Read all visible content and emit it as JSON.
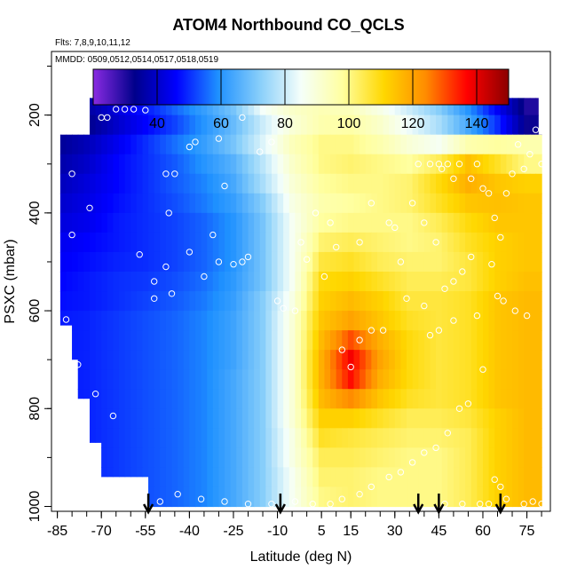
{
  "chart_data": {
    "type": "heatmap",
    "title": "ATOM4 Northbound CO_QCLS",
    "flights_label": "Flts: 7,8,9,10,11,12",
    "dates_label": "MMDD: 0509,0512,0514,0517,0518,0519",
    "xlabel": "Latitude (deg N)",
    "ylabel": "PSXC (mbar)",
    "xlim": [
      -87,
      83
    ],
    "ylim": [
      1010,
      70
    ],
    "x_ticks": [
      -85,
      -70,
      -55,
      -40,
      -25,
      -10,
      5,
      15,
      30,
      45,
      60,
      75
    ],
    "x_tick_labels": [
      "-85",
      "-70",
      "-55",
      "-40",
      "-25",
      "-10",
      "5",
      "15",
      "30",
      "45",
      "60",
      "75"
    ],
    "y_ticks": [
      200,
      400,
      600,
      800,
      1000
    ],
    "y_tick_labels": [
      "200",
      "400",
      "600",
      "800",
      "1000"
    ],
    "colorbar": {
      "range": [
        20,
        150
      ],
      "ticks": [
        40,
        60,
        80,
        100,
        120,
        140
      ],
      "tick_labels": [
        "40",
        "60",
        "80",
        "100",
        "120",
        "140"
      ],
      "colors": [
        "#8a2be2",
        "#00008b",
        "#0000ff",
        "#1e90ff",
        "#87cefa",
        "#f5fffa",
        "#ffffa0",
        "#ffd700",
        "#ff8c00",
        "#ff0000",
        "#8b0000"
      ]
    },
    "profile_arrows_lat": [
      -54,
      -9,
      38,
      45,
      66
    ],
    "curtain_top_pressure": 165,
    "curtain_bottom_pressure": 995,
    "pressure_levels": [
      180,
      220,
      260,
      300,
      340,
      380,
      420,
      460,
      500,
      540,
      580,
      620,
      660,
      700,
      740,
      780,
      820,
      860,
      900,
      940,
      980
    ],
    "latitude_bins": [
      -85,
      -75,
      -65,
      -55,
      -45,
      -35,
      -25,
      -15,
      -5,
      5,
      15,
      25,
      35,
      45,
      55,
      65,
      75
    ],
    "co_ppb": [
      [
        30,
        35,
        42,
        48,
        55,
        62,
        70,
        85,
        92,
        95,
        94,
        88,
        80,
        72,
        60,
        45,
        30
      ],
      [
        28,
        33,
        40,
        46,
        52,
        60,
        68,
        80,
        90,
        96,
        97,
        92,
        84,
        76,
        64,
        50,
        32
      ],
      [
        34,
        38,
        44,
        50,
        56,
        62,
        70,
        82,
        94,
        100,
        100,
        96,
        90,
        86,
        96,
        98,
        96
      ],
      [
        36,
        40,
        46,
        50,
        54,
        60,
        66,
        78,
        92,
        100,
        102,
        100,
        98,
        104,
        115,
        108,
        100
      ],
      [
        38,
        42,
        46,
        50,
        54,
        58,
        64,
        76,
        90,
        98,
        100,
        100,
        102,
        110,
        118,
        114,
        112
      ],
      [
        40,
        43,
        47,
        50,
        53,
        57,
        62,
        72,
        88,
        96,
        98,
        100,
        102,
        108,
        114,
        115,
        114
      ],
      [
        42,
        44,
        48,
        50,
        52,
        55,
        60,
        70,
        86,
        98,
        100,
        100,
        100,
        104,
        110,
        114,
        114
      ],
      [
        44,
        46,
        48,
        50,
        52,
        55,
        60,
        70,
        86,
        102,
        104,
        102,
        100,
        102,
        108,
        112,
        114
      ],
      [
        45,
        47,
        49,
        50,
        52,
        55,
        60,
        70,
        86,
        106,
        108,
        104,
        102,
        102,
        106,
        112,
        114
      ],
      [
        46,
        48,
        50,
        51,
        53,
        56,
        61,
        70,
        86,
        110,
        112,
        108,
        104,
        104,
        106,
        112,
        115
      ],
      [
        47,
        48,
        50,
        52,
        54,
        57,
        62,
        72,
        88,
        112,
        116,
        112,
        106,
        106,
        108,
        114,
        116
      ],
      [
        48,
        49,
        51,
        53,
        55,
        58,
        63,
        72,
        90,
        114,
        120,
        114,
        108,
        106,
        108,
        114,
        116
      ],
      [
        48,
        49,
        51,
        53,
        55,
        58,
        63,
        72,
        90,
        116,
        130,
        118,
        110,
        106,
        108,
        114,
        116
      ],
      [
        48,
        49,
        51,
        53,
        55,
        58,
        63,
        72,
        90,
        118,
        138,
        120,
        110,
        106,
        108,
        114,
        116
      ],
      [
        48,
        49,
        51,
        53,
        55,
        58,
        64,
        72,
        90,
        118,
        136,
        118,
        110,
        106,
        108,
        114,
        116
      ],
      [
        48,
        49,
        51,
        53,
        55,
        58,
        64,
        72,
        90,
        116,
        124,
        114,
        108,
        106,
        108,
        114,
        116
      ],
      [
        48,
        49,
        51,
        53,
        55,
        58,
        64,
        72,
        90,
        112,
        112,
        108,
        104,
        104,
        106,
        112,
        116
      ],
      [
        48,
        49,
        51,
        53,
        55,
        58,
        64,
        72,
        88,
        108,
        106,
        104,
        102,
        102,
        104,
        112,
        116
      ],
      [
        48,
        49,
        51,
        53,
        55,
        58,
        64,
        72,
        88,
        104,
        104,
        102,
        100,
        100,
        104,
        112,
        116
      ],
      [
        48,
        49,
        51,
        53,
        55,
        58,
        64,
        72,
        86,
        102,
        102,
        100,
        100,
        100,
        104,
        112,
        116
      ],
      [
        48,
        49,
        51,
        53,
        55,
        58,
        64,
        72,
        86,
        100,
        102,
        100,
        100,
        100,
        104,
        112,
        116
      ]
    ],
    "observation_points": [
      [
        -84,
        215
      ],
      [
        -82,
        215
      ],
      [
        -70,
        205
      ],
      [
        -68,
        205
      ],
      [
        -65,
        188
      ],
      [
        -62,
        188
      ],
      [
        -59,
        188
      ],
      [
        -55,
        190
      ],
      [
        -80,
        320
      ],
      [
        -74,
        390
      ],
      [
        -80,
        445
      ],
      [
        -57,
        485
      ],
      [
        -52,
        540
      ],
      [
        -48,
        510
      ],
      [
        -46,
        565
      ],
      [
        -52,
        575
      ],
      [
        -45,
        320
      ],
      [
        -48,
        320
      ],
      [
        -47,
        400
      ],
      [
        -40,
        480
      ],
      [
        -35,
        530
      ],
      [
        -30,
        500
      ],
      [
        -32,
        445
      ],
      [
        -28,
        345
      ],
      [
        -25,
        505
      ],
      [
        -22,
        500
      ],
      [
        -20,
        490
      ],
      [
        -16,
        275
      ],
      [
        -12,
        255
      ],
      [
        -10,
        580
      ],
      [
        -8,
        595
      ],
      [
        -4,
        600
      ],
      [
        -40,
        265
      ],
      [
        -38,
        255
      ],
      [
        -30,
        248
      ],
      [
        -22,
        205
      ],
      [
        -2,
        460
      ],
      [
        0,
        495
      ],
      [
        3,
        400
      ],
      [
        6,
        530
      ],
      [
        8,
        420
      ],
      [
        10,
        470
      ],
      [
        15,
        715
      ],
      [
        18,
        460
      ],
      [
        22,
        380
      ],
      [
        28,
        420
      ],
      [
        30,
        430
      ],
      [
        32,
        500
      ],
      [
        36,
        380
      ],
      [
        38,
        300
      ],
      [
        40,
        420
      ],
      [
        42,
        300
      ],
      [
        44,
        460
      ],
      [
        45,
        300
      ],
      [
        46,
        310
      ],
      [
        48,
        300
      ],
      [
        50,
        330
      ],
      [
        52,
        300
      ],
      [
        56,
        330
      ],
      [
        58,
        300
      ],
      [
        60,
        350
      ],
      [
        62,
        360
      ],
      [
        64,
        410
      ],
      [
        66,
        450
      ],
      [
        68,
        360
      ],
      [
        70,
        320
      ],
      [
        72,
        260
      ],
      [
        74,
        310
      ],
      [
        76,
        280
      ],
      [
        78,
        230
      ],
      [
        80,
        300
      ],
      [
        82,
        500
      ],
      [
        63,
        505
      ],
      [
        56,
        490
      ],
      [
        53,
        520
      ],
      [
        50,
        540
      ],
      [
        47,
        555
      ],
      [
        40,
        590
      ],
      [
        34,
        575
      ],
      [
        26,
        640
      ],
      [
        22,
        640
      ],
      [
        18,
        660
      ],
      [
        12,
        680
      ],
      [
        60,
        720
      ],
      [
        55,
        790
      ],
      [
        52,
        800
      ],
      [
        48,
        850
      ],
      [
        44,
        880
      ],
      [
        40,
        890
      ],
      [
        36,
        910
      ],
      [
        32,
        930
      ],
      [
        28,
        940
      ],
      [
        22,
        960
      ],
      [
        18,
        975
      ],
      [
        12,
        985
      ],
      [
        8,
        995
      ],
      [
        2,
        995
      ],
      [
        -4,
        990
      ],
      [
        -12,
        995
      ],
      [
        -20,
        995
      ],
      [
        -28,
        990
      ],
      [
        -36,
        985
      ],
      [
        -44,
        975
      ],
      [
        -50,
        990
      ],
      [
        -58,
        950
      ],
      [
        -66,
        815
      ],
      [
        -72,
        770
      ],
      [
        -78,
        710
      ],
      [
        -82,
        618
      ],
      [
        64,
        945
      ],
      [
        66,
        960
      ],
      [
        68,
        985
      ],
      [
        62,
        995
      ],
      [
        74,
        995
      ],
      [
        77,
        990
      ],
      [
        80,
        995
      ],
      [
        59,
        995
      ],
      [
        53,
        995
      ],
      [
        47,
        995
      ],
      [
        65,
        570
      ],
      [
        67,
        580
      ],
      [
        71,
        600
      ],
      [
        75,
        610
      ],
      [
        58,
        610
      ],
      [
        50,
        620
      ],
      [
        45,
        640
      ],
      [
        42,
        650
      ]
    ]
  }
}
